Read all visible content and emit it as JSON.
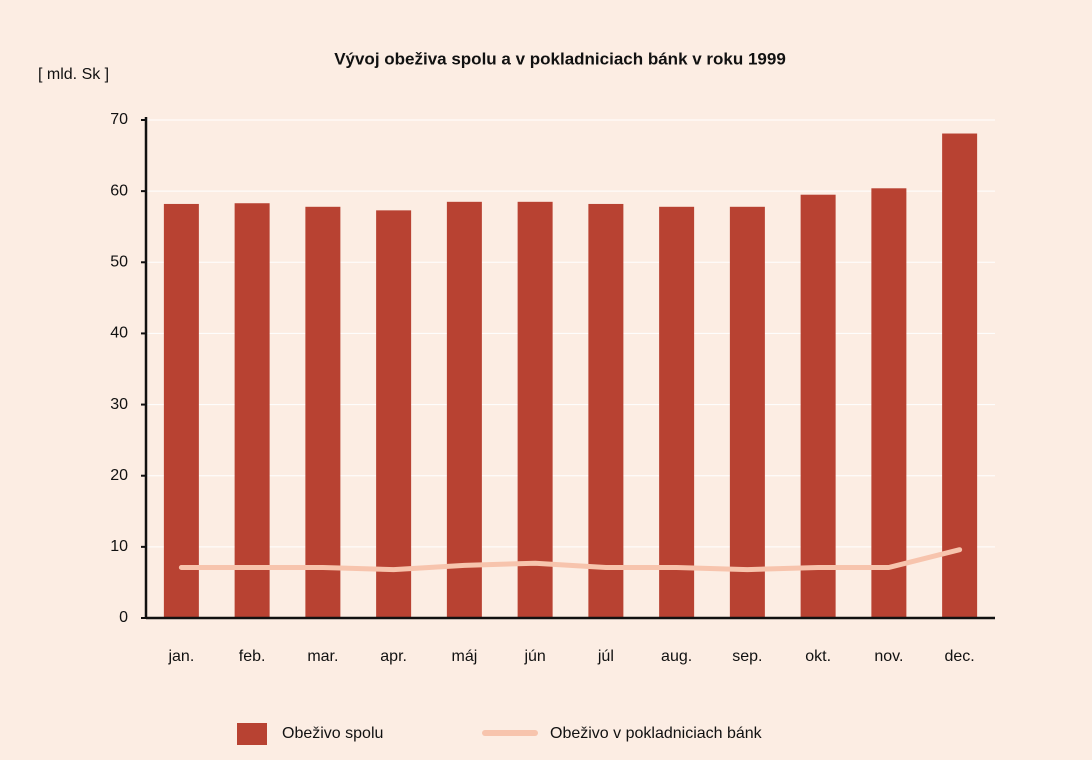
{
  "chart_data": {
    "type": "bar_line",
    "title": "Vývoj obeživa spolu a v pokladniciach bánk v roku 1999",
    "y_label": "[ mld. Sk ]",
    "categories": [
      "jan.",
      "feb.",
      "mar.",
      "apr.",
      "máj",
      "jún",
      "júl",
      "aug.",
      "sep.",
      "okt.",
      "nov.",
      "dec."
    ],
    "series": [
      {
        "name": "Obeživo spolu",
        "type": "bar",
        "color": "#b84232",
        "values": [
          58.2,
          58.3,
          57.8,
          57.3,
          58.5,
          58.5,
          58.2,
          57.8,
          57.8,
          59.5,
          60.4,
          68.1
        ]
      },
      {
        "name": "Obeživo v pokladniciach bánk",
        "type": "line",
        "color": "#f7c4ad",
        "values": [
          7.1,
          7.1,
          7.1,
          6.8,
          7.4,
          7.7,
          7.1,
          7.1,
          6.8,
          7.1,
          7.1,
          9.6
        ]
      }
    ],
    "ylim": [
      0,
      70
    ],
    "yticks": [
      0,
      10,
      20,
      30,
      40,
      50,
      60,
      70
    ],
    "grid": true
  }
}
